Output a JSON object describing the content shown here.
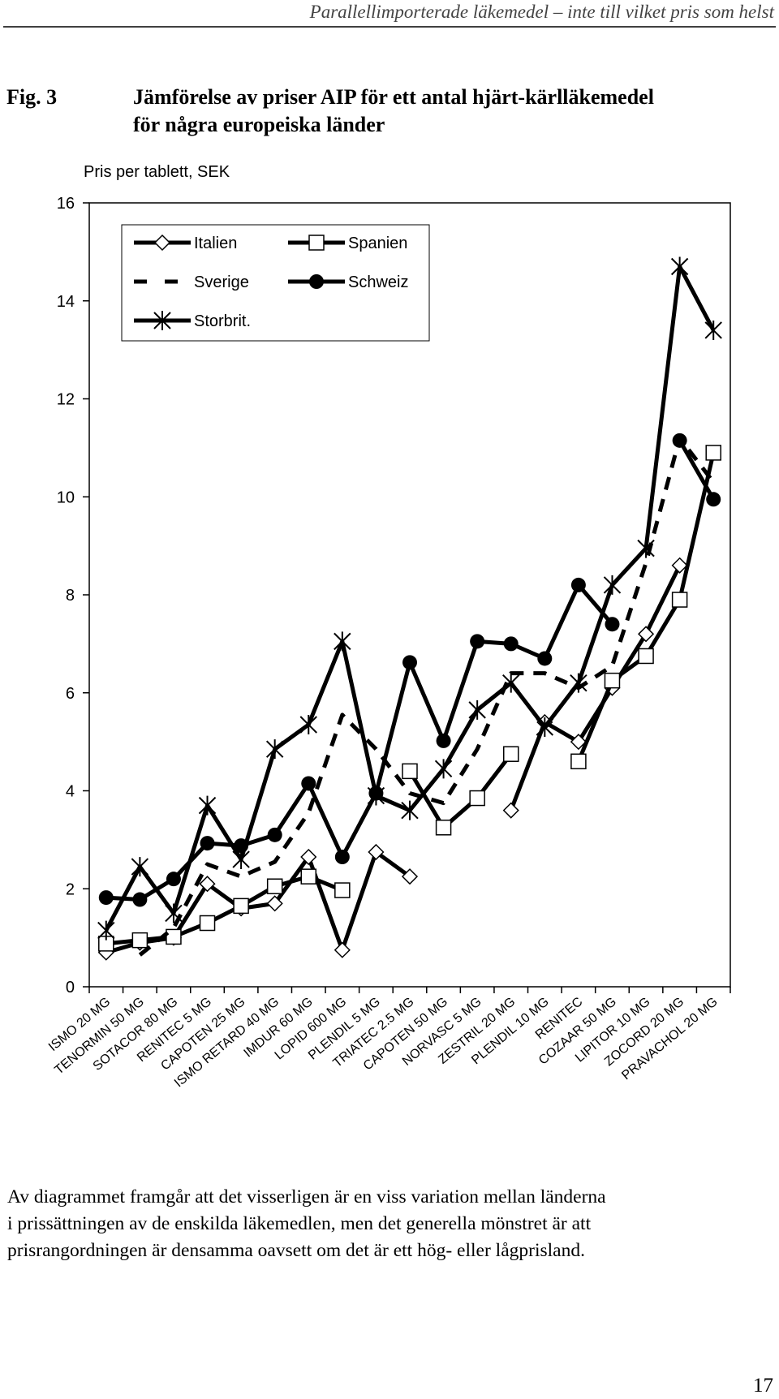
{
  "header": "Parallellimporterade läkemedel – inte till vilket pris som helst",
  "figure": {
    "label": "Fig. 3",
    "title_lines": [
      "Jämförelse av priser AIP för ett antal hjärt-kärlläkemedel",
      "för några europeiska länder"
    ]
  },
  "chart_data": {
    "type": "line",
    "y_label": "Pris per tablett, SEK",
    "categories": [
      "ISMO 20 MG",
      "TENORMIN 50 MG",
      "SOTACOR 80 MG",
      "RENITEC 5 MG",
      "CAPOTEN 25 MG",
      "ISMO RETARD 40 MG",
      "IMDUR 60 MG",
      "LOPID 600 MG",
      "PLENDIL 5 MG",
      "TRIATEC 2.5 MG",
      "CAPOTEN 50 MG",
      "NORVASC 5 MG",
      "ZESTRIL 20 MG",
      "PLENDIL 10 MG",
      "RENITEC",
      "COZAAR 50 MG",
      "LIPITOR 10 MG",
      "ZOCORD 20 MG",
      "PRAVACHOL 20 MG"
    ],
    "series": [
      {
        "name": "Italien",
        "color": "#000000",
        "marker": "diamond",
        "dashed": false,
        "values": [
          0.7,
          0.9,
          1.0,
          2.1,
          1.6,
          1.7,
          2.65,
          0.75,
          2.75,
          2.25,
          null,
          null,
          3.6,
          5.4,
          5.0,
          6.1,
          7.2,
          8.6,
          null
        ]
      },
      {
        "name": "Spanien",
        "color": "#000000",
        "marker": "square",
        "dashed": false,
        "values": [
          0.88,
          0.95,
          1.02,
          1.3,
          1.65,
          2.05,
          2.25,
          1.97,
          null,
          4.4,
          3.25,
          3.85,
          4.75,
          null,
          4.6,
          6.25,
          6.75,
          7.9,
          10.9
        ]
      },
      {
        "name": "Sverige",
        "color": "#000000",
        "marker": "none",
        "dashed": true,
        "values": [
          null,
          0.65,
          1.2,
          2.5,
          2.25,
          2.55,
          3.55,
          5.55,
          4.85,
          3.95,
          3.75,
          4.85,
          6.4,
          6.4,
          6.1,
          6.55,
          8.65,
          11.2,
          10.3
        ]
      },
      {
        "name": "Schweiz",
        "color": "#000000",
        "marker": "circle",
        "dashed": false,
        "values": [
          1.82,
          1.78,
          2.2,
          2.93,
          2.88,
          3.1,
          4.15,
          2.65,
          3.95,
          6.62,
          5.02,
          7.05,
          7.0,
          6.7,
          8.2,
          7.4,
          null,
          11.15,
          9.95
        ]
      },
      {
        "name": "Storbrit.",
        "color": "#000000",
        "marker": "asterisk",
        "dashed": false,
        "values": [
          1.15,
          2.45,
          1.5,
          3.7,
          2.6,
          4.85,
          5.35,
          7.05,
          3.9,
          3.6,
          4.45,
          5.65,
          6.2,
          5.3,
          6.2,
          8.2,
          8.95,
          14.7,
          13.4
        ]
      }
    ],
    "ylim": [
      0,
      16
    ],
    "yticks": [
      0,
      2,
      4,
      6,
      8,
      10,
      12,
      14,
      16
    ],
    "grid": false
  },
  "body_lines": [
    "Av diagrammet framgår att det visserligen är en viss variation mellan länderna",
    "i prissättningen av de enskilda läkemedlen, men det generella mönstret är att",
    "prisrangordningen är densamma oavsett om det är ett hög- eller lågprisland."
  ],
  "page_number": "17"
}
